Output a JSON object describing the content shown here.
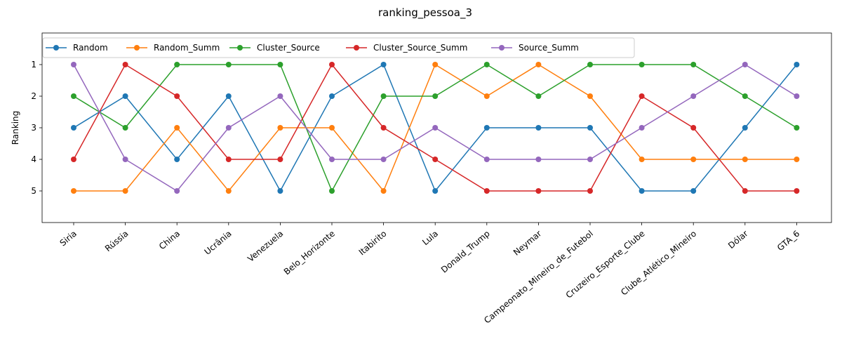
{
  "chart_data": {
    "type": "line",
    "title": "ranking_pessoa_3",
    "xlabel": "",
    "ylabel": "Ranking",
    "y_inverted": true,
    "ylim": [
      6,
      0
    ],
    "yticks": [
      1,
      2,
      3,
      4,
      5
    ],
    "grid": false,
    "legend_position": "top-left",
    "legend_columns": 5,
    "categories": [
      "Siria",
      "Rússia",
      "China",
      "Ucrânia",
      "Venezuela",
      "Belo_Horizonte",
      "Itabirito",
      "Lula",
      "Donald_Trump",
      "Neymar",
      "Campeonato_Mineiro_de_Futebol",
      "Cruzeiro_Esporte_Clube",
      "Clube_Atlético_Mineiro",
      "Dólar",
      "GTA_6"
    ],
    "series": [
      {
        "name": "Random",
        "color": "#1f77b4",
        "values": [
          3,
          2,
          4,
          2,
          5,
          2,
          1,
          5,
          3,
          3,
          3,
          5,
          5,
          3,
          1
        ]
      },
      {
        "name": "Random_Summ",
        "color": "#ff7f0e",
        "values": [
          5,
          5,
          3,
          5,
          3,
          3,
          5,
          1,
          2,
          1,
          2,
          4,
          4,
          4,
          4
        ]
      },
      {
        "name": "Cluster_Source",
        "color": "#2ca02c",
        "values": [
          2,
          3,
          1,
          1,
          1,
          5,
          2,
          2,
          1,
          2,
          1,
          1,
          1,
          2,
          3
        ]
      },
      {
        "name": "Cluster_Source_Summ",
        "color": "#d62728",
        "values": [
          4,
          1,
          2,
          4,
          4,
          1,
          3,
          4,
          5,
          5,
          5,
          2,
          3,
          5,
          5
        ]
      },
      {
        "name": "Source_Summ",
        "color": "#9467bd",
        "values": [
          1,
          4,
          5,
          3,
          2,
          4,
          4,
          3,
          4,
          4,
          4,
          3,
          2,
          1,
          2
        ]
      }
    ]
  }
}
